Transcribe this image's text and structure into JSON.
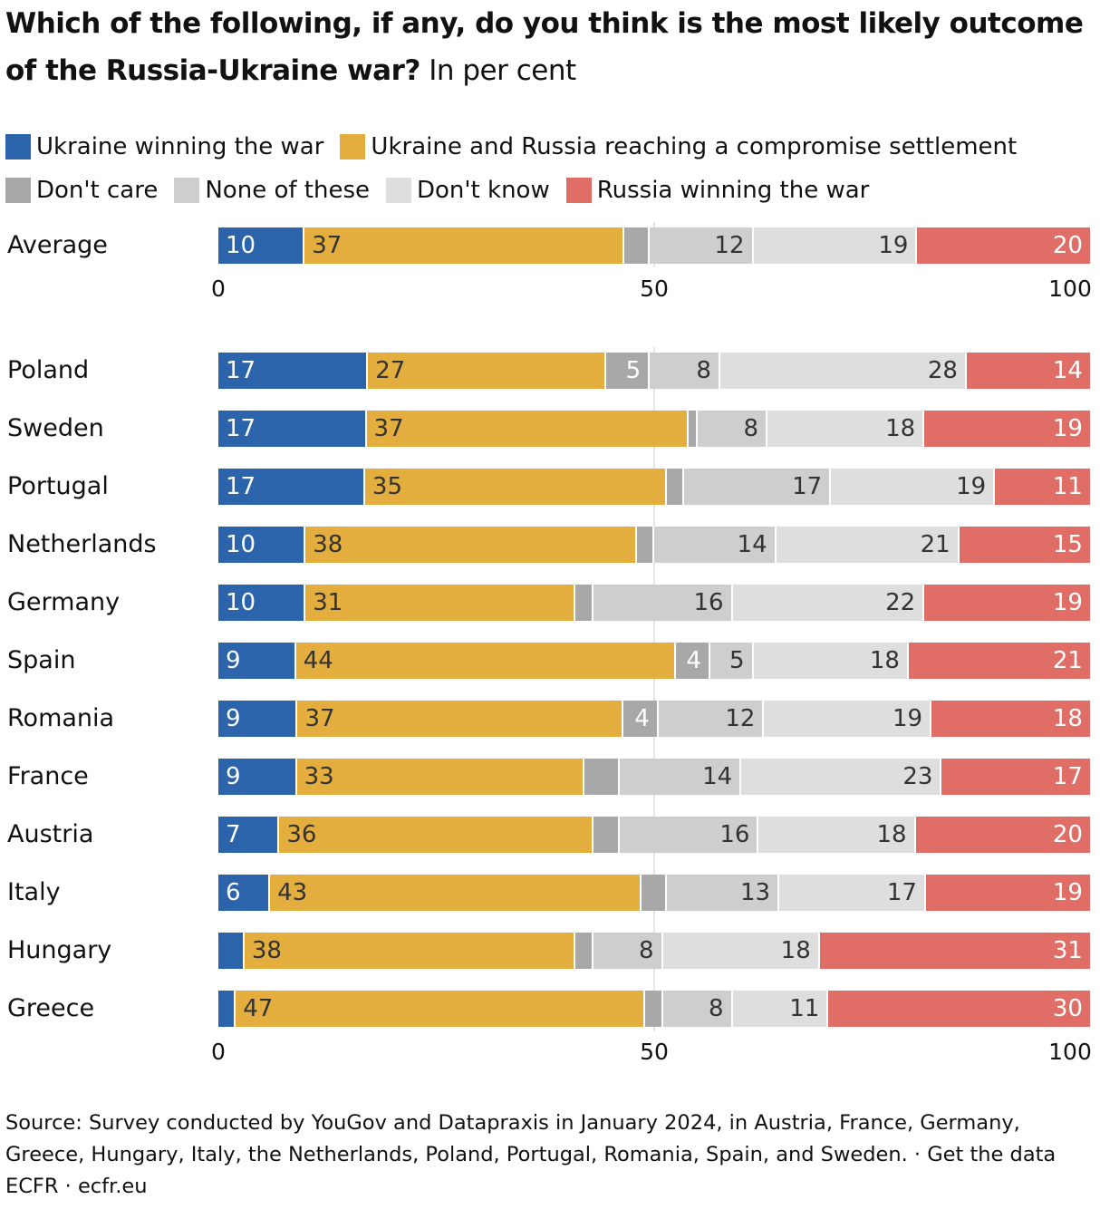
{
  "title_bold": "Which of the following, if any, do you think is the most likely outcome of the Russia-Ukraine war?",
  "title_unit": "In per cent",
  "chart_data": {
    "type": "bar",
    "orientation": "horizontal-stacked",
    "xlim": [
      0,
      100
    ],
    "ticks": [
      "0",
      "50",
      "100"
    ],
    "legend_position": "top",
    "series": [
      {
        "name": "Ukraine winning the war",
        "color": "#2b64ab",
        "text": "#ffffff",
        "align": "left"
      },
      {
        "name": "Ukraine and Russia reaching a compromise settlement",
        "color": "#e3ae3e",
        "text": "#333333",
        "align": "left"
      },
      {
        "name": "Don't care",
        "color": "#a8a8a8",
        "text": "#ffffff",
        "align": "right"
      },
      {
        "name": "None of these",
        "color": "#cecece",
        "text": "#333333",
        "align": "right"
      },
      {
        "name": "Don't know",
        "color": "#dedede",
        "text": "#333333",
        "align": "right"
      },
      {
        "name": "Russia winning the war",
        "color": "#e06e67",
        "text": "#ffffff",
        "align": "right"
      }
    ],
    "average": {
      "name": "Average",
      "values": [
        10,
        37,
        3,
        12,
        19,
        20
      ],
      "labels": [
        "10",
        "37",
        "",
        "12",
        "19",
        "20"
      ]
    },
    "rows": [
      {
        "name": "Poland",
        "values": [
          17,
          27,
          5,
          8,
          28,
          14
        ],
        "labels": [
          "17",
          "27",
          "5",
          "8",
          "28",
          "14"
        ]
      },
      {
        "name": "Sweden",
        "values": [
          17,
          37,
          1,
          8,
          18,
          19
        ],
        "labels": [
          "17",
          "37",
          "",
          "8",
          "18",
          "19"
        ]
      },
      {
        "name": "Portugal",
        "values": [
          17,
          35,
          2,
          17,
          19,
          11
        ],
        "labels": [
          "17",
          "35",
          "",
          "17",
          "19",
          "11"
        ]
      },
      {
        "name": "Netherlands",
        "values": [
          10,
          38,
          2,
          14,
          21,
          15
        ],
        "labels": [
          "10",
          "38",
          "",
          "14",
          "21",
          "15"
        ]
      },
      {
        "name": "Germany",
        "values": [
          10,
          31,
          2,
          16,
          22,
          19
        ],
        "labels": [
          "10",
          "31",
          "",
          "16",
          "22",
          "19"
        ]
      },
      {
        "name": "Spain",
        "values": [
          9,
          44,
          4,
          5,
          18,
          21
        ],
        "labels": [
          "9",
          "44",
          "4",
          "5",
          "18",
          "21"
        ]
      },
      {
        "name": "Romania",
        "values": [
          9,
          37,
          4,
          12,
          19,
          18
        ],
        "labels": [
          "9",
          "37",
          "4",
          "12",
          "19",
          "18"
        ]
      },
      {
        "name": "France",
        "values": [
          9,
          33,
          4,
          14,
          23,
          17
        ],
        "labels": [
          "9",
          "33",
          "",
          "14",
          "23",
          "17"
        ]
      },
      {
        "name": "Austria",
        "values": [
          7,
          36,
          3,
          16,
          18,
          20
        ],
        "labels": [
          "7",
          "36",
          "",
          "16",
          "18",
          "20"
        ]
      },
      {
        "name": "Italy",
        "values": [
          6,
          43,
          3,
          13,
          17,
          19
        ],
        "labels": [
          "6",
          "43",
          "",
          "13",
          "17",
          "19"
        ]
      },
      {
        "name": "Hungary",
        "values": [
          3,
          38,
          2,
          8,
          18,
          31
        ],
        "labels": [
          "",
          "38",
          "",
          "8",
          "18",
          "31"
        ]
      },
      {
        "name": "Greece",
        "values": [
          2,
          47,
          2,
          8,
          11,
          30
        ],
        "labels": [
          "",
          "47",
          "",
          "8",
          "11",
          "30"
        ]
      }
    ]
  },
  "footer": {
    "source": "Source: Survey conducted by YouGov and Datapraxis in January 2024, in Austria, France, Germany, Greece, Hungary, Italy, the Netherlands, Poland, Portugal, Romania, Spain, and Sweden. · ",
    "get_data": "Get the data",
    "credit": "ECFR · ecfr.eu"
  }
}
